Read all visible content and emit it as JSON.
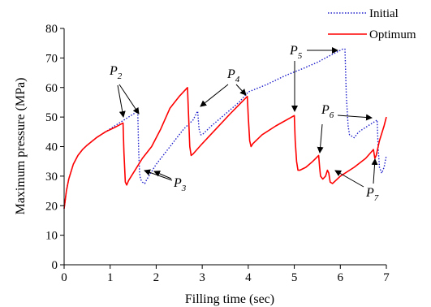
{
  "chart_data": {
    "type": "line",
    "title": "",
    "xlabel": "Filling time (sec)",
    "ylabel": "Maximum pressure (MPa)",
    "xlim": [
      0,
      7
    ],
    "ylim": [
      0,
      80
    ],
    "xticks": [
      0,
      1,
      2,
      3,
      4,
      5,
      6,
      7
    ],
    "yticks": [
      0,
      10,
      20,
      30,
      40,
      50,
      60,
      70,
      80
    ],
    "grid": false,
    "legend_position": "top-right",
    "series": [
      {
        "name": "Initial",
        "color": "#1f1fcc",
        "style": "dotted",
        "x": [
          0,
          0.05,
          0.1,
          0.2,
          0.3,
          0.4,
          0.5,
          0.7,
          0.9,
          1.1,
          1.3,
          1.5,
          1.6,
          1.62,
          1.64,
          1.66,
          1.7,
          1.75,
          1.8,
          2.0,
          2.2,
          2.4,
          2.6,
          2.8,
          2.9,
          2.93,
          2.97,
          3.0,
          3.2,
          3.5,
          3.8,
          4.0,
          4.4,
          4.8,
          5.2,
          5.5,
          5.8,
          6.05,
          6.1,
          6.13,
          6.17,
          6.2,
          6.3,
          6.4,
          6.6,
          6.8,
          6.82,
          6.85,
          6.9,
          6.95,
          7.0
        ],
        "y": [
          19,
          25,
          29,
          34,
          37,
          39,
          40.5,
          43,
          45,
          47,
          49,
          51,
          52,
          38,
          31,
          29,
          28,
          27.5,
          29,
          34,
          38,
          42,
          46,
          49,
          52,
          46,
          44,
          44,
          47,
          51,
          55,
          58.5,
          61,
          64,
          66.5,
          68.5,
          71,
          73,
          73,
          57,
          47,
          44,
          43,
          45,
          47,
          49,
          40,
          33,
          31,
          33,
          37
        ]
      },
      {
        "name": "Optimum",
        "color": "#ff0000",
        "style": "solid",
        "x": [
          0,
          0.05,
          0.1,
          0.2,
          0.3,
          0.4,
          0.5,
          0.7,
          0.9,
          1.1,
          1.28,
          1.3,
          1.33,
          1.36,
          1.4,
          1.5,
          1.7,
          1.9,
          2.1,
          2.3,
          2.5,
          2.68,
          2.7,
          2.73,
          2.76,
          2.8,
          3.0,
          3.3,
          3.6,
          3.98,
          4.0,
          4.03,
          4.06,
          4.1,
          4.3,
          4.6,
          5.0,
          5.02,
          5.05,
          5.08,
          5.12,
          5.25,
          5.4,
          5.53,
          5.55,
          5.57,
          5.62,
          5.68,
          5.72,
          5.75,
          5.78,
          5.83,
          5.9,
          6.0,
          6.3,
          6.55,
          6.72,
          6.75,
          6.78,
          6.85,
          6.95,
          7.0
        ],
        "y": [
          19,
          25,
          29,
          34,
          37,
          39,
          40.5,
          43,
          45,
          46.5,
          48,
          38,
          28,
          27,
          28.5,
          31,
          36,
          40,
          46,
          53,
          57,
          60,
          52,
          40,
          37,
          37.5,
          41,
          46,
          51,
          57,
          50,
          42,
          40,
          41,
          44,
          47,
          50.5,
          42,
          35,
          32,
          32,
          33,
          35,
          37,
          33,
          30,
          29,
          30,
          32,
          31,
          28,
          27.5,
          28.5,
          30,
          33,
          36,
          39,
          36,
          37,
          42,
          47,
          50
        ]
      }
    ],
    "annotations": [
      {
        "base": "P",
        "sub": "2"
      },
      {
        "base": "P",
        "sub": "3"
      },
      {
        "base": "P",
        "sub": "4"
      },
      {
        "base": "P",
        "sub": "5"
      },
      {
        "base": "P",
        "sub": "6"
      },
      {
        "base": "P",
        "sub": "7"
      }
    ]
  }
}
